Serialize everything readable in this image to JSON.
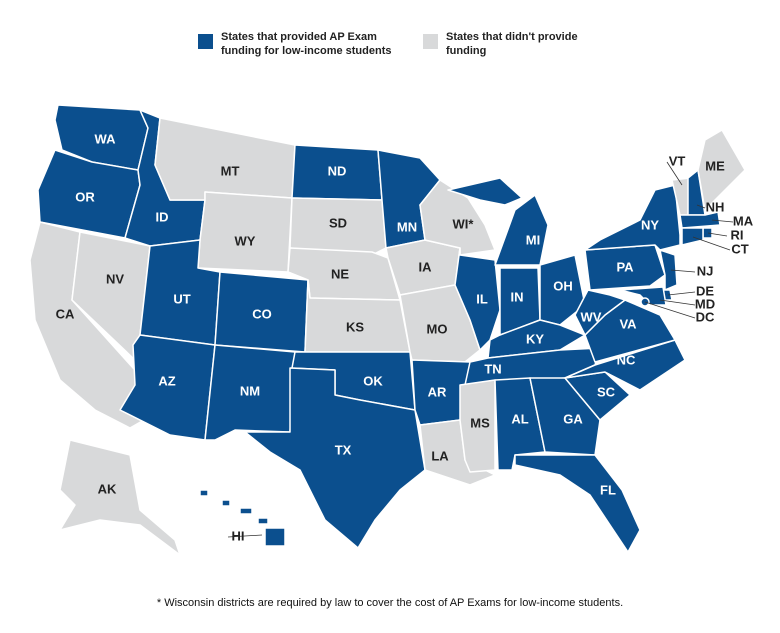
{
  "legend": [
    {
      "label": "States that provided AP Exam funding for low-income students",
      "color": "#0b4f8e"
    },
    {
      "label": "States that didn't provide funding",
      "color": "#d8d9da"
    }
  ],
  "states": [
    {
      "label": "WA",
      "funded": true
    },
    {
      "label": "OR",
      "funded": true
    },
    {
      "label": "CA",
      "funded": false
    },
    {
      "label": "NV",
      "funded": false
    },
    {
      "label": "ID",
      "funded": true
    },
    {
      "label": "MT",
      "funded": false
    },
    {
      "label": "WY",
      "funded": false
    },
    {
      "label": "UT",
      "funded": true
    },
    {
      "label": "CO",
      "funded": true
    },
    {
      "label": "AZ",
      "funded": true
    },
    {
      "label": "NM",
      "funded": true
    },
    {
      "label": "ND",
      "funded": true
    },
    {
      "label": "SD",
      "funded": false
    },
    {
      "label": "NE",
      "funded": false
    },
    {
      "label": "KS",
      "funded": false
    },
    {
      "label": "OK",
      "funded": true
    },
    {
      "label": "TX",
      "funded": true
    },
    {
      "label": "MN",
      "funded": true
    },
    {
      "label": "IA",
      "funded": false
    },
    {
      "label": "MO",
      "funded": false
    },
    {
      "label": "AR",
      "funded": true
    },
    {
      "label": "LA",
      "funded": false
    },
    {
      "label": "WI*",
      "funded": false
    },
    {
      "label": "IL",
      "funded": true
    },
    {
      "label": "MI",
      "funded": true
    },
    {
      "label": "IN",
      "funded": true
    },
    {
      "label": "OH",
      "funded": true
    },
    {
      "label": "KY",
      "funded": true
    },
    {
      "label": "TN",
      "funded": true
    },
    {
      "label": "MS",
      "funded": false
    },
    {
      "label": "AL",
      "funded": true
    },
    {
      "label": "GA",
      "funded": true
    },
    {
      "label": "FL",
      "funded": true
    },
    {
      "label": "SC",
      "funded": true
    },
    {
      "label": "NC",
      "funded": true
    },
    {
      "label": "VA",
      "funded": true
    },
    {
      "label": "WV",
      "funded": true
    },
    {
      "label": "PA",
      "funded": true
    },
    {
      "label": "NY",
      "funded": true
    },
    {
      "label": "NJ",
      "funded": true
    },
    {
      "label": "DE",
      "funded": true
    },
    {
      "label": "MD",
      "funded": true
    },
    {
      "label": "DC",
      "funded": true
    },
    {
      "label": "VT",
      "funded": false
    },
    {
      "label": "NH",
      "funded": true
    },
    {
      "label": "ME",
      "funded": false
    },
    {
      "label": "MA",
      "funded": true
    },
    {
      "label": "RI",
      "funded": true
    },
    {
      "label": "CT",
      "funded": true
    },
    {
      "label": "AK",
      "funded": false
    },
    {
      "label": "HI",
      "funded": true
    }
  ],
  "footnote": "* Wisconsin districts are required by law to cover the cost of AP Exams for low-income students."
}
